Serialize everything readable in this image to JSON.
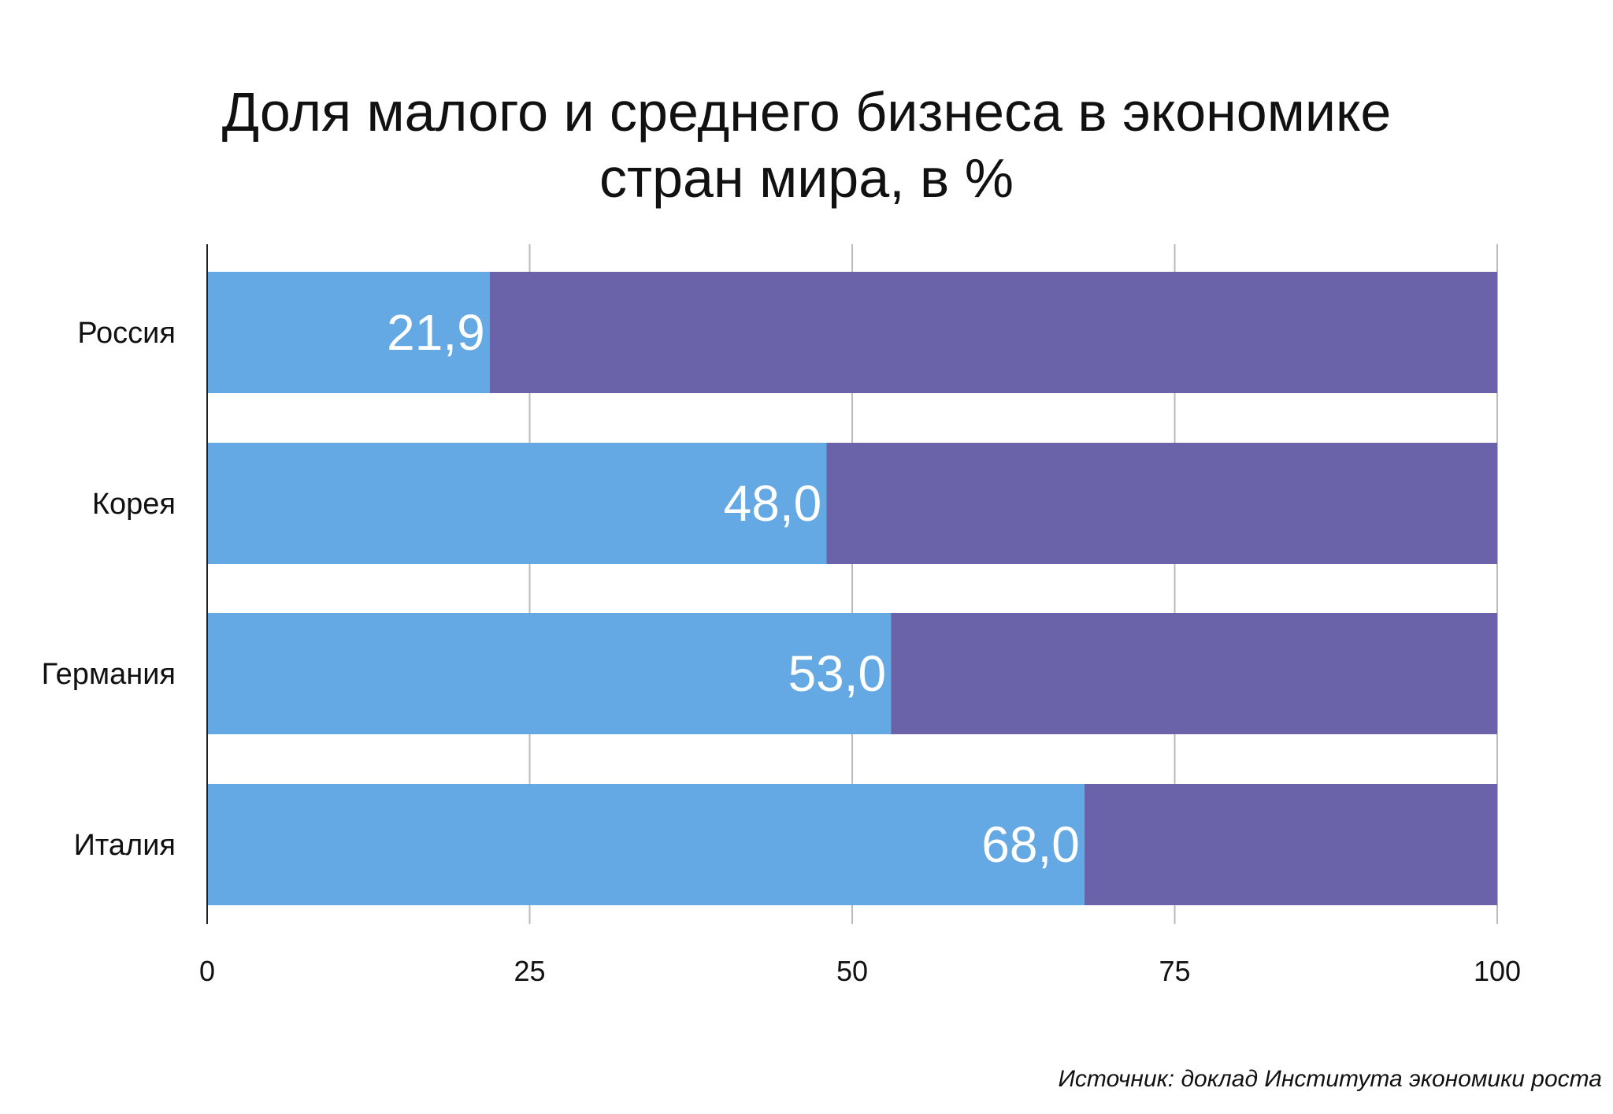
{
  "title_line1": "Доля малого и среднего бизнеса в экономике",
  "title_line2": "стран мира, в %",
  "source": "Источник: доклад Института экономики роста",
  "colors": {
    "share": "#64A9E3",
    "remainder": "#6A63AA",
    "value_label": "#FFFFFF",
    "grid": "#BBBBBB",
    "axis": "#222222"
  },
  "chart_data": {
    "type": "bar",
    "orientation": "horizontal",
    "stacked": true,
    "categories": [
      "Россия",
      "Корея",
      "Германия",
      "Италия"
    ],
    "series": [
      {
        "values": [
          21.9,
          48.0,
          53.0,
          68.0
        ]
      },
      {
        "values": [
          78.1,
          52.0,
          47.0,
          32.0
        ]
      }
    ],
    "data_labels": [
      "21,9",
      "48,0",
      "53,0",
      "68,0"
    ],
    "xlim": [
      0,
      100
    ],
    "xticks": [
      0,
      25,
      50,
      75,
      100
    ],
    "grid": true,
    "legend": "none"
  }
}
